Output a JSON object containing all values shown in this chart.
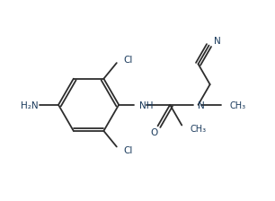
{
  "bg_color": "#ffffff",
  "line_color": "#2d2d2d",
  "label_color": "#1a3a5c",
  "bond_lw": 1.3,
  "font_size": 7.5,
  "figsize": [
    3.06,
    2.24
  ],
  "dpi": 100,
  "xlim": [
    0,
    9.5
  ],
  "ylim": [
    0,
    7.0
  ]
}
